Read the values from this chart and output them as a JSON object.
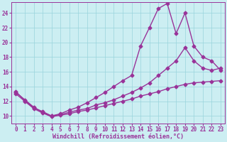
{
  "background_color": "#cceef2",
  "grid_color": "#99d4dc",
  "line_color": "#993399",
  "marker": "D",
  "markersize": 2.5,
  "linewidth": 1.0,
  "xlim": [
    -0.5,
    23.5
  ],
  "ylim": [
    9,
    25.5
  ],
  "xticks": [
    0,
    1,
    2,
    3,
    4,
    5,
    6,
    7,
    8,
    9,
    10,
    11,
    12,
    13,
    14,
    15,
    16,
    17,
    18,
    19,
    20,
    21,
    22,
    23
  ],
  "yticks": [
    10,
    12,
    14,
    16,
    18,
    20,
    22,
    24
  ],
  "xlabel": "Windchill (Refroidissement éolien,°C)",
  "line1_x": [
    0,
    1,
    2,
    3,
    4,
    5,
    6,
    7,
    8,
    9,
    10,
    11,
    12,
    13,
    14,
    15,
    16,
    17,
    18,
    19,
    20,
    21,
    22,
    23
  ],
  "line1_y": [
    13.2,
    12.2,
    11.2,
    10.5,
    10.0,
    10.3,
    10.8,
    11.2,
    11.8,
    12.5,
    13.2,
    14.0,
    14.8,
    15.5,
    19.5,
    22.0,
    24.6,
    25.3,
    21.2,
    24.0,
    19.5,
    18.0,
    17.5,
    16.2
  ],
  "line2_x": [
    0,
    1,
    2,
    3,
    4,
    5,
    6,
    7,
    8,
    9,
    10,
    11,
    12,
    13,
    14,
    15,
    16,
    17,
    18,
    19,
    20,
    21,
    22,
    23
  ],
  "line2_y": [
    13.3,
    12.1,
    11.1,
    10.6,
    10.0,
    10.2,
    10.5,
    10.8,
    11.0,
    11.5,
    11.8,
    12.2,
    12.7,
    13.2,
    13.8,
    14.5,
    15.5,
    16.5,
    17.5,
    19.3,
    17.5,
    16.5,
    16.2,
    16.5
  ],
  "line3_x": [
    0,
    1,
    2,
    3,
    4,
    5,
    6,
    7,
    8,
    9,
    10,
    11,
    12,
    13,
    14,
    15,
    16,
    17,
    18,
    19,
    20,
    21,
    22,
    23
  ],
  "line3_y": [
    13.0,
    12.0,
    11.0,
    10.4,
    9.9,
    10.1,
    10.3,
    10.6,
    10.8,
    11.1,
    11.4,
    11.7,
    12.0,
    12.3,
    12.7,
    13.0,
    13.3,
    13.7,
    14.0,
    14.3,
    14.5,
    14.6,
    14.7,
    14.8
  ],
  "tick_fontsize": 5.5,
  "label_fontsize": 6.0
}
